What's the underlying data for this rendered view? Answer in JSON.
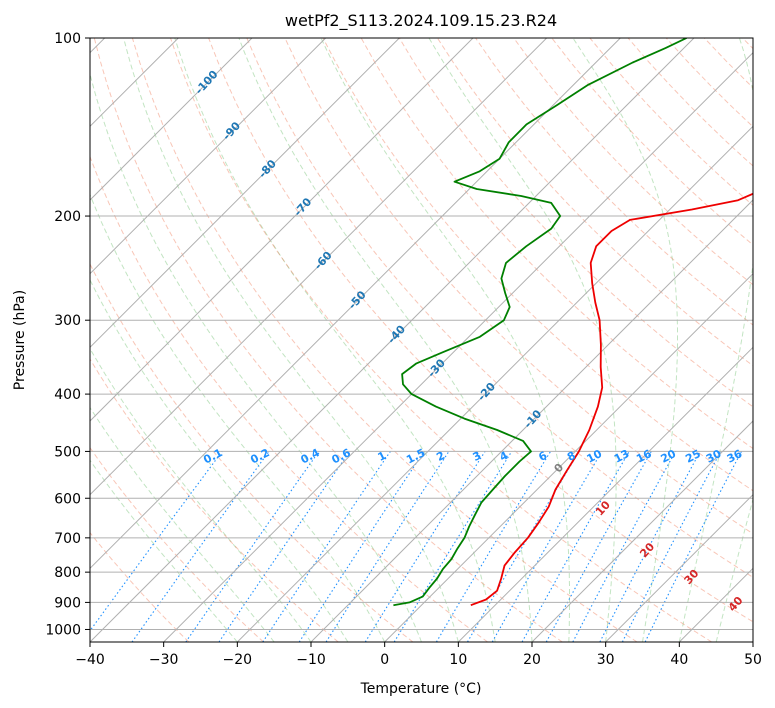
{
  "chart_data": {
    "type": "line",
    "subtype": "skew-T log-P diagram",
    "title": "wetPf2_S113.2024.109.15.23.R24",
    "xlabel": "Temperature (°C)",
    "ylabel": "Pressure (hPa)",
    "xlim": [
      -40,
      50
    ],
    "ylim": [
      1050,
      100
    ],
    "y_scale": "log",
    "x_ticks": [
      -40,
      -30,
      -20,
      -10,
      0,
      10,
      20,
      30,
      40,
      50
    ],
    "x_tick_labels": [
      "−40",
      "−30",
      "−20",
      "−10",
      "0",
      "10",
      "20",
      "30",
      "40",
      "50"
    ],
    "y_ticks": [
      1000,
      900,
      800,
      700,
      600,
      500,
      400,
      300,
      200,
      100
    ],
    "y_tick_labels": [
      "1000",
      "900",
      "800",
      "700",
      "600",
      "500",
      "400",
      "300",
      "200",
      "100"
    ],
    "grid": true,
    "series": [
      {
        "color": "#ee0000",
        "points": [
          [
            910,
            6.7
          ],
          [
            890,
            8.0
          ],
          [
            860,
            8.3
          ],
          [
            820,
            7.2
          ],
          [
            780,
            5.9
          ],
          [
            740,
            5.5
          ],
          [
            700,
            5.3
          ],
          [
            660,
            4.7
          ],
          [
            620,
            3.9
          ],
          [
            580,
            2.5
          ],
          [
            540,
            1.5
          ],
          [
            500,
            0.5
          ],
          [
            460,
            -1.0
          ],
          [
            420,
            -3.0
          ],
          [
            390,
            -5.0
          ],
          [
            360,
            -8.0
          ],
          [
            330,
            -11.0
          ],
          [
            300,
            -14.5
          ],
          [
            280,
            -17.5
          ],
          [
            260,
            -20.5
          ],
          [
            240,
            -23.5
          ],
          [
            225,
            -25.0
          ],
          [
            212,
            -25.0
          ],
          [
            203,
            -24.0
          ],
          [
            195,
            -17.0
          ],
          [
            188,
            -12.0
          ],
          [
            180,
            -10.0
          ],
          [
            170,
            -10.0
          ],
          [
            160,
            -13.0
          ],
          [
            152,
            -13.5
          ],
          [
            145,
            -11.0
          ],
          [
            138,
            -8.0
          ],
          [
            130,
            -5.5
          ],
          [
            120,
            -3.0
          ],
          [
            110,
            -1.5
          ],
          [
            103,
            -0.5
          ],
          [
            100,
            1.0
          ]
        ]
      },
      {
        "color": "#008000",
        "points": [
          [
            910,
            -3.8
          ],
          [
            900,
            -2.0
          ],
          [
            880,
            -1.0
          ],
          [
            850,
            -1.3
          ],
          [
            820,
            -1.5
          ],
          [
            790,
            -2.0
          ],
          [
            760,
            -2.2
          ],
          [
            730,
            -2.8
          ],
          [
            700,
            -3.3
          ],
          [
            670,
            -4.2
          ],
          [
            640,
            -5.0
          ],
          [
            610,
            -5.8
          ],
          [
            580,
            -6.0
          ],
          [
            550,
            -6.2
          ],
          [
            520,
            -6.2
          ],
          [
            500,
            -6.0
          ],
          [
            480,
            -8.5
          ],
          [
            460,
            -13.5
          ],
          [
            440,
            -19.5
          ],
          [
            420,
            -25.0
          ],
          [
            400,
            -30.0
          ],
          [
            385,
            -32.5
          ],
          [
            370,
            -34.0
          ],
          [
            355,
            -33.5
          ],
          [
            340,
            -31.5
          ],
          [
            320,
            -28.5
          ],
          [
            300,
            -27.5
          ],
          [
            285,
            -28.5
          ],
          [
            270,
            -31.0
          ],
          [
            255,
            -33.5
          ],
          [
            240,
            -35.0
          ],
          [
            225,
            -34.5
          ],
          [
            210,
            -33.5
          ],
          [
            200,
            -34.0
          ],
          [
            190,
            -37.0
          ],
          [
            185,
            -42.0
          ],
          [
            180,
            -49.0
          ],
          [
            175,
            -53.0
          ],
          [
            168,
            -51.0
          ],
          [
            160,
            -50.0
          ],
          [
            150,
            -51.0
          ],
          [
            140,
            -51.0
          ],
          [
            130,
            -49.5
          ],
          [
            120,
            -48.0
          ],
          [
            110,
            -45.0
          ],
          [
            104,
            -42.5
          ],
          [
            100,
            -41.0
          ]
        ]
      }
    ],
    "dry_adiabat_labels": [
      "-100",
      "-90",
      "-80",
      "-70",
      "-60",
      "-50",
      "-40",
      "-30",
      "-20",
      "-10"
    ],
    "moist_adiabat_labels": [
      "0",
      "10",
      "20",
      "30",
      "40"
    ],
    "mixing_ratio_labels": [
      "0.1",
      "0.2",
      "0.4",
      "0.6",
      "1",
      "1.5",
      "2",
      "3",
      "4",
      "6",
      "8",
      "10",
      "13",
      "16",
      "20",
      "25",
      "30",
      "36"
    ],
    "colors": {
      "temperature": "#ee0000",
      "dewpoint": "#008000",
      "isotherms": "#b0b0b0",
      "dry_adiabats": "#f08060",
      "moist_adiabats": "#66bb66",
      "mixing_ratio": "#1e90ff",
      "dry_adiabat_label": "#1f77b4",
      "moist_adiabat_label": "#d62728"
    }
  }
}
